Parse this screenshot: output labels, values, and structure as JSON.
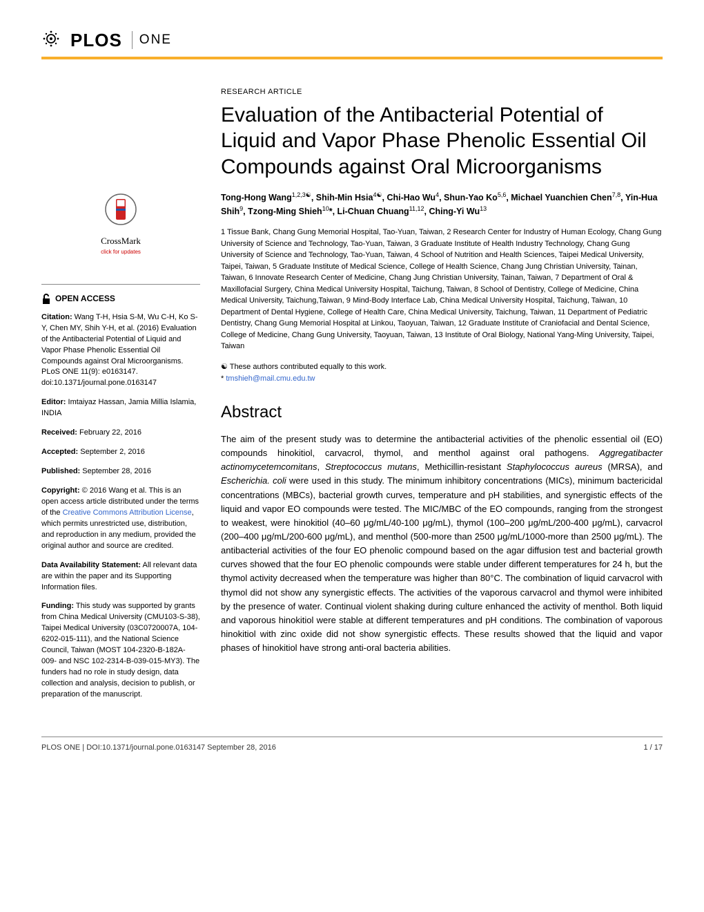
{
  "journal": {
    "logo_text": "PLOS",
    "sub_text": "ONE"
  },
  "accent_color": "#f8af2c",
  "article_type": "RESEARCH ARTICLE",
  "title": "Evaluation of the Antibacterial Potential of Liquid and Vapor Phase Phenolic Essential Oil Compounds against Oral Microorganisms",
  "authors_html": "Tong-Hong Wang<sup>1,2,3☯</sup>, Shih-Min Hsia<sup>4☯</sup>, Chi-Hao Wu<sup>4</sup>, Shun-Yao Ko<sup>5,6</sup>, Michael Yuanchien Chen<sup>7,8</sup>, Yin-Hua Shih<sup>9</sup>, Tzong-Ming Shieh<sup>10</sup>*, Li-Chuan Chuang<sup>11,12</sup>, Ching-Yi Wu<sup>13</sup>",
  "affiliations": "1 Tissue Bank, Chang Gung Memorial Hospital, Tao-Yuan, Taiwan, 2 Research Center for Industry of Human Ecology, Chang Gung University of Science and Technology, Tao-Yuan, Taiwan, 3 Graduate Institute of Health Industry Technology, Chang Gung University of Science and Technology, Tao-Yuan, Taiwan, 4 School of Nutrition and Health Sciences, Taipei Medical University, Taipei, Taiwan, 5 Graduate Institute of Medical Science, College of Health Science, Chang Jung Christian University, Tainan, Taiwan, 6 Innovate Research Center of Medicine, Chang Jung Christian University, Tainan, Taiwan, 7 Department of Oral & Maxillofacial Surgery, China Medical University Hospital, Taichung, Taiwan, 8 School of Dentistry, College of Medicine, China Medical University, Taichung,Taiwan, 9 Mind-Body Interface Lab, China Medical University Hospital, Taichung, Taiwan, 10 Department of Dental Hygiene, College of Health Care, China Medical University, Taichung, Taiwan, 11 Department of Pediatric Dentistry, Chang Gung Memorial Hospital at Linkou, Taoyuan, Taiwan, 12 Graduate Institute of Craniofacial and Dental Science, College of Medicine, Chang Gung University, Taoyuan, Taiwan, 13 Institute of Oral Biology, National Yang-Ming University, Taipei, Taiwan",
  "equal_note": "☯ These authors contributed equally to this work.",
  "corresp_symbol": "*",
  "corresp_email": "tmshieh@mail.cmu.edu.tw",
  "abstract_heading": "Abstract",
  "abstract_body": "The aim of the present study was to determine the antibacterial activities of the phenolic essential oil (EO) compounds hinokitiol, carvacrol, thymol, and menthol against oral pathogens. Aggregatibacter actinomycetemcomitans, Streptococcus mutans, Methicillin-resistant Staphylococcus aureus (MRSA), and Escherichia. coli were used in this study. The minimum inhibitory concentrations (MICs), minimum bactericidal concentrations (MBCs), bacterial growth curves, temperature and pH stabilities, and synergistic effects of the liquid and vapor EO compounds were tested. The MIC/MBC of the EO compounds, ranging from the strongest to weakest, were hinokitiol (40–60 μg/mL/40-100 μg/mL), thymol (100–200 μg/mL/200-400 μg/mL), carvacrol (200–400 μg/mL/200-600 μg/mL), and menthol (500-more than 2500 μg/mL/1000-more than 2500 μg/mL). The antibacterial activities of the four EO phenolic compound based on the agar diffusion test and bacterial growth curves showed that the four EO phenolic compounds were stable under different temperatures for 24 h, but the thymol activity decreased when the temperature was higher than 80°C. The combination of liquid carvacrol with thymol did not show any synergistic effects. The activities of the vaporous carvacrol and thymol were inhibited by the presence of water. Continual violent shaking during culture enhanced the activity of menthol. Both liquid and vaporous hinokitiol were stable at different temperatures and pH conditions. The combination of vaporous hinokitiol with zinc oxide did not show synergistic effects. These results showed that the liquid and vapor phases of hinokitiol have strong anti-oral bacteria abilities.",
  "sidebar": {
    "crossmark_label": "CrossMark",
    "crossmark_sub": "click for updates",
    "open_access": "OPEN ACCESS",
    "citation_label": "Citation:",
    "citation_text": " Wang T-H, Hsia S-M, Wu C-H, Ko S-Y, Chen MY, Shih Y-H, et al. (2016) Evaluation of the Antibacterial Potential of Liquid and Vapor Phase Phenolic Essential Oil Compounds against Oral Microorganisms. PLoS ONE 11(9): e0163147. doi:10.1371/journal.pone.0163147",
    "editor_label": "Editor:",
    "editor_text": " Imtaiyaz Hassan, Jamia Millia Islamia, INDIA",
    "received_label": "Received:",
    "received_text": " February 22, 2016",
    "accepted_label": "Accepted:",
    "accepted_text": " September 2, 2016",
    "published_label": "Published:",
    "published_text": " September 28, 2016",
    "copyright_label": "Copyright:",
    "copyright_text_a": " © 2016 Wang et al. This is an open access article distributed under the terms of the ",
    "copyright_link": "Creative Commons Attribution License",
    "copyright_text_b": ", which permits unrestricted use, distribution, and reproduction in any medium, provided the original author and source are credited.",
    "data_label": "Data Availability Statement:",
    "data_text": " All relevant data are within the paper and its Supporting Information files.",
    "funding_label": "Funding:",
    "funding_text": " This study was supported by grants from China Medical University (CMU103-S-38), Taipei Medical University (03C0720007A, 104-6202-015-111), and the National Science Council, Taiwan (MOST 104-2320-B-182A-009- and NSC 102-2314-B-039-015-MY3). The funders had no role in study design, data collection and analysis, decision to publish, or preparation of the manuscript."
  },
  "footer": {
    "left": "PLOS ONE | DOI:10.1371/journal.pone.0163147    September 28, 2016",
    "right": "1 / 17"
  }
}
